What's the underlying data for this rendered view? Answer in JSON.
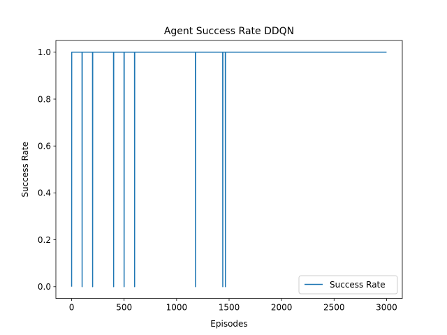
{
  "chart_data": {
    "type": "line",
    "title": "Agent Success Rate DDQN",
    "xlabel": "Episodes",
    "ylabel": "Success Rate",
    "xlim": [
      -150,
      3150
    ],
    "ylim": [
      -0.05,
      1.05
    ],
    "xticks": [
      0,
      500,
      1000,
      1500,
      2000,
      2500,
      3000
    ],
    "yticks": [
      0.0,
      0.2,
      0.4,
      0.6,
      0.8,
      1.0
    ],
    "xtick_labels": [
      "0",
      "500",
      "1000",
      "1500",
      "2000",
      "2500",
      "3000"
    ],
    "ytick_labels": [
      "0.0",
      "0.2",
      "0.4",
      "0.6",
      "0.8",
      "1.0"
    ],
    "grid": false,
    "legend_position": "lower-right",
    "series": [
      {
        "name": "Success Rate",
        "color": "#1f77b4",
        "baseline": 1.0,
        "x_range": [
          0,
          3000
        ],
        "dips_to": 0.0,
        "dip_episodes": [
          0,
          100,
          200,
          400,
          500,
          600,
          1180,
          1440,
          1465
        ]
      }
    ]
  }
}
